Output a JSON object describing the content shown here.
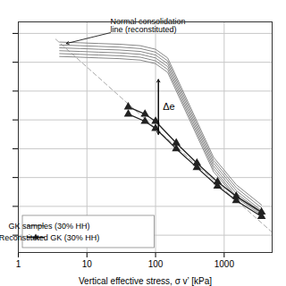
{
  "chart_data": {
    "type": "line",
    "x_label": "Vertical effective stress, σ v’ [kPa]",
    "log": "x",
    "xlim": [
      1,
      5000
    ],
    "xticks": [
      1,
      10,
      100,
      1000
    ],
    "ylim": [
      0.08,
      1.68
    ],
    "yticks": [
      0.2,
      0.4,
      0.6,
      0.8,
      1,
      1.2,
      1.4,
      1.6
    ],
    "tick_labels": "x",
    "grid": true,
    "legend": "lower left",
    "reference_line": {
      "color": "#aaaaaa",
      "line_style": "dashed",
      "x": [
        3.5,
        5000
      ],
      "values": [
        1.56,
        0.22
      ]
    },
    "series": [
      {
        "name": "GK samples (30% HH)",
        "color": "#888888",
        "curves": [
          {
            "x": [
              4,
              8,
              15,
              30,
              60,
              100,
              150,
              300,
              700,
              1500,
              3500
            ],
            "values": [
              1.54,
              1.535,
              1.53,
              1.525,
              1.515,
              1.49,
              1.43,
              1.12,
              0.74,
              0.55,
              0.41
            ]
          },
          {
            "x": [
              4,
              8,
              15,
              30,
              60,
              100,
              150,
              300,
              700,
              1500,
              3500
            ],
            "values": [
              1.52,
              1.515,
              1.51,
              1.505,
              1.495,
              1.47,
              1.41,
              1.1,
              0.72,
              0.53,
              0.39
            ]
          },
          {
            "x": [
              4,
              8,
              15,
              30,
              60,
              100,
              150,
              300,
              700,
              1500,
              3500
            ],
            "values": [
              1.5,
              1.495,
              1.49,
              1.485,
              1.475,
              1.45,
              1.39,
              1.08,
              0.7,
              0.51,
              0.37
            ]
          },
          {
            "x": [
              4,
              8,
              15,
              30,
              60,
              100,
              150,
              300,
              700,
              1500,
              3500
            ],
            "values": [
              1.48,
              1.475,
              1.47,
              1.465,
              1.455,
              1.43,
              1.37,
              1.06,
              0.68,
              0.49,
              0.36
            ]
          },
          {
            "x": [
              4,
              8,
              15,
              30,
              60,
              100,
              150,
              300,
              700,
              1500,
              3500
            ],
            "values": [
              1.46,
              1.455,
              1.45,
              1.445,
              1.435,
              1.41,
              1.35,
              1.04,
              0.66,
              0.47,
              0.35
            ]
          },
          {
            "x": [
              4,
              8,
              15,
              30,
              60,
              100,
              150,
              300,
              700,
              1500,
              3500
            ],
            "values": [
              1.44,
              1.435,
              1.43,
              1.425,
              1.415,
              1.39,
              1.33,
              1.02,
              0.64,
              0.46,
              0.34
            ]
          }
        ]
      },
      {
        "name": "Reconstituted GK (30% HH)",
        "color": "#222222",
        "marker": "triangle",
        "curves": [
          {
            "x": [
              40,
              70,
              100,
              200,
              400,
              800,
              1500,
              3500
            ],
            "values": [
              1.09,
              1.04,
              0.99,
              0.84,
              0.7,
              0.57,
              0.47,
              0.36
            ]
          },
          {
            "x": [
              40,
              70,
              100,
              200,
              400,
              800,
              1500,
              3500
            ],
            "values": [
              1.04,
              0.99,
              0.94,
              0.8,
              0.67,
              0.54,
              0.44,
              0.33
            ]
          }
        ]
      }
    ],
    "annotations": [
      {
        "text": "Normal consolidation line (reconstituted)",
        "x": 22,
        "y": 1.605,
        "arrow_to": {
          "x": 5.0,
          "y": 1.53
        }
      },
      {
        "text": "Δe",
        "x": 110,
        "y_top": 1.28,
        "y_bottom": 0.9
      }
    ]
  }
}
